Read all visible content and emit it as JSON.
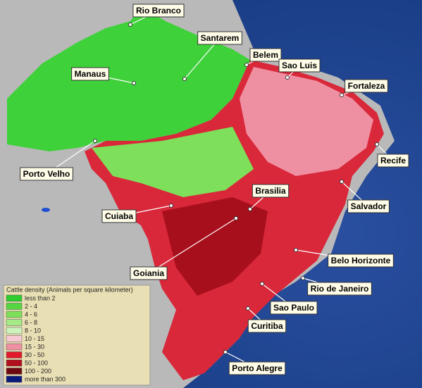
{
  "legend": {
    "title": "Cattle density (Animals per square kilometer)",
    "items": [
      {
        "label": "less than 2",
        "color": "#2ecc2e"
      },
      {
        "label": "2 - 4",
        "color": "#55d640"
      },
      {
        "label": "4 - 6",
        "color": "#7ee05a"
      },
      {
        "label": "6 - 8",
        "color": "#a4ea86"
      },
      {
        "label": "8 - 10",
        "color": "#cdf4bd"
      },
      {
        "label": "10 - 15",
        "color": "#f7c9d2"
      },
      {
        "label": "15 - 30",
        "color": "#ef8fa2"
      },
      {
        "label": "30 - 50",
        "color": "#e01a2a"
      },
      {
        "label": "50 - 100",
        "color": "#b0101c"
      },
      {
        "label": "100 - 200",
        "color": "#6e0810"
      },
      {
        "label": "more than 300",
        "color": "#0a1a7a"
      }
    ]
  },
  "cities": [
    {
      "label": "Rio Branco"
    },
    {
      "label": "Santarem"
    },
    {
      "label": "Belem"
    },
    {
      "label": "Manaus"
    },
    {
      "label": "Sao Luis"
    },
    {
      "label": "Fortaleza"
    },
    {
      "label": "Recife"
    },
    {
      "label": "Porto Velho"
    },
    {
      "label": "Brasilia"
    },
    {
      "label": "Salvador"
    },
    {
      "label": "Cuiaba"
    },
    {
      "label": "Belo Horizonte"
    },
    {
      "label": "Goiania"
    },
    {
      "label": "Rio de Janeiro"
    },
    {
      "label": "Sao Paulo"
    },
    {
      "label": "Curitiba"
    },
    {
      "label": "Porto Alegre"
    }
  ]
}
